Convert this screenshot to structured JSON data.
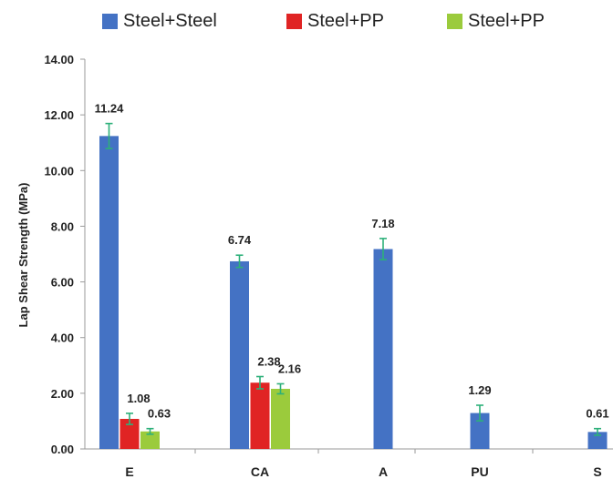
{
  "chart_data": {
    "type": "bar",
    "title": "",
    "xlabel": "",
    "ylabel": "Lap Shear Strength (MPa)",
    "ylim": [
      0,
      14
    ],
    "yticks": [
      "0.00",
      "2.00",
      "4.00",
      "6.00",
      "8.00",
      "10.00",
      "12.00",
      "14.00"
    ],
    "categories": [
      "E",
      "CA",
      "A",
      "PU",
      "S"
    ],
    "grid": false,
    "legend_position": "top",
    "series": [
      {
        "name": "Steel+Steel",
        "color": "#4472C4",
        "values": [
          11.24,
          6.74,
          7.18,
          1.29,
          0.61
        ],
        "labels": [
          "11.24",
          "6.74",
          "7.18",
          "1.29",
          "0.61"
        ],
        "errors": [
          0.45,
          0.22,
          0.38,
          0.28,
          0.12
        ]
      },
      {
        "name": "Steel+PP",
        "color": "#E02424",
        "values": [
          1.08,
          2.38,
          null,
          null,
          null
        ],
        "labels": [
          "1.08",
          "2.38",
          "",
          "",
          ""
        ],
        "errors": [
          0.2,
          0.22,
          null,
          null,
          null
        ]
      },
      {
        "name": "Steel+PP",
        "color": "#9BCB3C",
        "values": [
          0.63,
          2.16,
          null,
          null,
          null
        ],
        "labels": [
          "0.63",
          "2.16",
          "",
          "",
          ""
        ],
        "errors": [
          0.1,
          0.18,
          null,
          null,
          null
        ]
      }
    ],
    "error_bar_color": "#2DB07A"
  }
}
